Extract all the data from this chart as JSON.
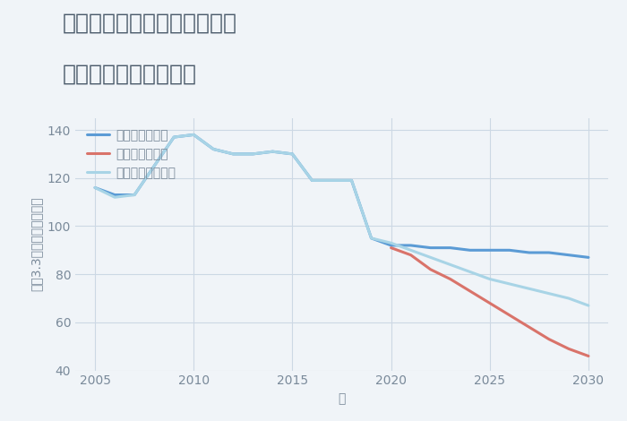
{
  "title_line1": "兵庫県尼崎市武庫之荘本町の",
  "title_line2": "中古戸建ての価格推移",
  "xlabel": "年",
  "ylabel": "坪（3.3㎡）単価（万円）",
  "xlim": [
    2004,
    2031
  ],
  "ylim": [
    40,
    145
  ],
  "yticks": [
    40,
    60,
    80,
    100,
    120,
    140
  ],
  "xticks": [
    2005,
    2010,
    2015,
    2020,
    2025,
    2030
  ],
  "background_color": "#f0f4f8",
  "good_scenario": {
    "label": "グッドシナリオ",
    "color": "#5b9bd5",
    "x": [
      2005,
      2006,
      2007,
      2008,
      2009,
      2010,
      2011,
      2012,
      2013,
      2014,
      2015,
      2016,
      2017,
      2018,
      2019,
      2020,
      2021,
      2022,
      2023,
      2024,
      2025,
      2026,
      2027,
      2028,
      2029,
      2030
    ],
    "y": [
      116,
      113,
      113,
      125,
      137,
      138,
      132,
      130,
      130,
      131,
      130,
      119,
      119,
      119,
      95,
      92,
      92,
      91,
      91,
      90,
      90,
      90,
      89,
      89,
      88,
      87
    ]
  },
  "bad_scenario": {
    "label": "バッドシナリオ",
    "color": "#d9736a",
    "x": [
      2020,
      2021,
      2022,
      2023,
      2024,
      2025,
      2026,
      2027,
      2028,
      2029,
      2030
    ],
    "y": [
      91,
      88,
      82,
      78,
      73,
      68,
      63,
      58,
      53,
      49,
      46
    ]
  },
  "normal_scenario": {
    "label": "ノーマルシナリオ",
    "color": "#a8d4e6",
    "x": [
      2005,
      2006,
      2007,
      2008,
      2009,
      2010,
      2011,
      2012,
      2013,
      2014,
      2015,
      2016,
      2017,
      2018,
      2019,
      2020,
      2021,
      2022,
      2023,
      2024,
      2025,
      2026,
      2027,
      2028,
      2029,
      2030
    ],
    "y": [
      116,
      112,
      113,
      125,
      137,
      138,
      132,
      130,
      130,
      131,
      130,
      119,
      119,
      119,
      95,
      93,
      90,
      87,
      84,
      81,
      78,
      76,
      74,
      72,
      70,
      67
    ]
  },
  "grid_color": "#ccd8e4",
  "title_color": "#4a5a6a",
  "axis_color": "#7a8a9a",
  "legend_fontsize": 10,
  "title_fontsize": 18,
  "axis_label_fontsize": 10,
  "tick_fontsize": 10,
  "linewidth": 2.2
}
